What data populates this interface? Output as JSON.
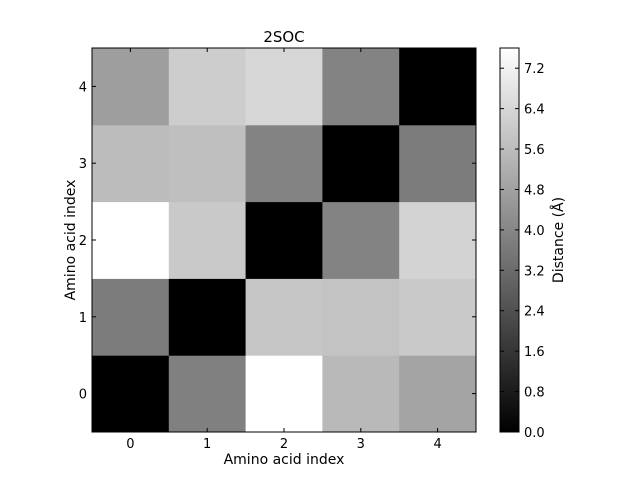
{
  "chart_data": {
    "type": "heatmap",
    "title": "2SOC",
    "xlabel": "Amino acid index",
    "ylabel": "Amino acid index",
    "x": [
      0,
      1,
      2,
      3,
      4
    ],
    "y": [
      0,
      1,
      2,
      3,
      4
    ],
    "values": [
      [
        0.0,
        3.8,
        7.6,
        5.5,
        4.9
      ],
      [
        3.7,
        0.0,
        5.9,
        5.8,
        6.0
      ],
      [
        7.6,
        6.0,
        0.0,
        3.9,
        6.3
      ],
      [
        5.6,
        5.7,
        3.9,
        0.0,
        3.7
      ],
      [
        4.7,
        6.1,
        6.4,
        3.9,
        0.0
      ]
    ],
    "colormap": "gray",
    "vmin": 0.0,
    "vmax": 7.6,
    "colorbar": {
      "label": "Distance (Å)",
      "ticks": [
        0.0,
        0.8,
        1.6,
        2.4,
        3.2,
        4.0,
        4.8,
        5.6,
        6.4,
        7.2
      ],
      "tick_labels": [
        "0.0",
        "0.8",
        "1.6",
        "2.4",
        "3.2",
        "4.0",
        "4.8",
        "5.6",
        "6.4",
        "7.2"
      ]
    }
  }
}
